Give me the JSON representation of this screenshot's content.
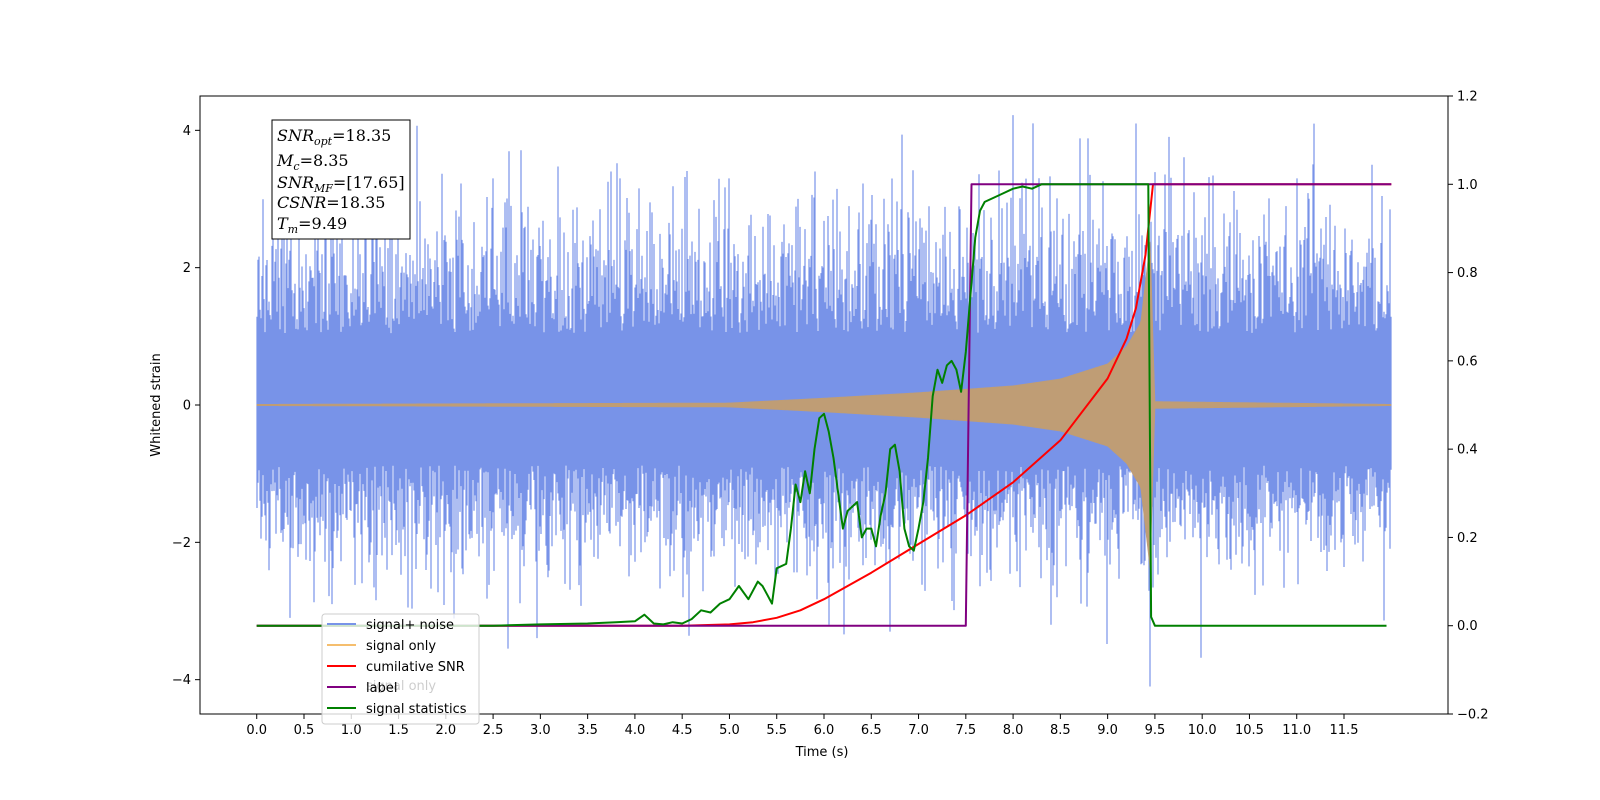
{
  "chart_data": {
    "type": "line",
    "title": "",
    "xlabel": "Time (s)",
    "ylabel": "Whitened strain",
    "xlim": [
      -0.6,
      12.6
    ],
    "ylim": [
      -4.5,
      4.5
    ],
    "y2lim": [
      -0.2,
      1.2
    ],
    "x_ticks": [
      0,
      0.5,
      1,
      1.5,
      2,
      2.5,
      3,
      3.5,
      4,
      4.5,
      5,
      5.5,
      6,
      6.5,
      7,
      7.5,
      8,
      8.5,
      9,
      9.5,
      10,
      10.5,
      11,
      11.5
    ],
    "x_tick_labels": [
      "0.0",
      "0.5",
      "1.0",
      "1.5",
      "2.0",
      "2.5",
      "3.0",
      "3.5",
      "4.0",
      "4.5",
      "5.0",
      "5.5",
      "6.0",
      "6.5",
      "7.0",
      "7.5",
      "8.0",
      "8.5",
      "9.0",
      "9.5",
      "10.0",
      "10.5",
      "11.0",
      "11.5"
    ],
    "y_ticks": [
      -4,
      -2,
      0,
      2,
      4
    ],
    "y_tick_labels": [
      "−4",
      "−2",
      "0",
      "2",
      "4"
    ],
    "y2_ticks": [
      -0.2,
      0.0,
      0.2,
      0.4,
      0.6,
      0.8,
      1.0,
      1.2
    ],
    "y2_tick_labels": [
      "−0.2",
      "0.0",
      "0.2",
      "0.4",
      "0.6",
      "0.8",
      "1.0",
      "1.2"
    ],
    "grid": false,
    "legend_position": "lower-left",
    "series": [
      {
        "name": "signal+ noise",
        "axis": "left",
        "color": "#7893e8",
        "x_range": [
          0,
          12
        ],
        "envelope_upper": 1.9,
        "envelope_lower": -1.6,
        "spikes": [
          {
            "x": 0.35,
            "y": -3.1
          },
          {
            "x": 0.8,
            "y": -2.9
          },
          {
            "x": 2.5,
            "y": 3.3
          },
          {
            "x": 3.75,
            "y": 3.4
          },
          {
            "x": 5.0,
            "y": 3.3
          },
          {
            "x": 5.9,
            "y": 3.4
          },
          {
            "x": 6.05,
            "y": -3.2
          },
          {
            "x": 6.7,
            "y": -3.3
          },
          {
            "x": 8.4,
            "y": -3.2
          },
          {
            "x": 9.3,
            "y": 4.1
          },
          {
            "x": 9.45,
            "y": -4.1
          },
          {
            "x": 11.0,
            "y": 3.3
          },
          {
            "x": 11.8,
            "y": 3.5
          }
        ]
      },
      {
        "name": "signal only",
        "axis": "left",
        "color": "#f5be6e",
        "x_range": [
          0,
          12
        ],
        "amplitude_points": [
          {
            "x": 0,
            "y": 0.01
          },
          {
            "x": 5.0,
            "y": 0.03
          },
          {
            "x": 6.0,
            "y": 0.1
          },
          {
            "x": 7.0,
            "y": 0.18
          },
          {
            "x": 8.0,
            "y": 0.28
          },
          {
            "x": 8.5,
            "y": 0.38
          },
          {
            "x": 9.0,
            "y": 0.6
          },
          {
            "x": 9.2,
            "y": 0.85
          },
          {
            "x": 9.35,
            "y": 1.2
          },
          {
            "x": 9.45,
            "y": 2.4
          },
          {
            "x": 9.5,
            "y": 0.05
          },
          {
            "x": 12.0,
            "y": 0.01
          }
        ]
      },
      {
        "name": "cumilative SNR",
        "axis": "right",
        "color": "#ff0000",
        "x": [
          0,
          4.5,
          5.0,
          5.25,
          5.5,
          5.75,
          6.0,
          6.5,
          7.0,
          7.5,
          8.0,
          8.5,
          9.0,
          9.2,
          9.3,
          9.4,
          9.48,
          12.0
        ],
        "y": [
          0,
          0,
          0.003,
          0.008,
          0.018,
          0.035,
          0.06,
          0.12,
          0.185,
          0.25,
          0.325,
          0.42,
          0.56,
          0.65,
          0.72,
          0.84,
          1.0,
          1.0
        ]
      },
      {
        "name": "label",
        "axis": "right",
        "color": "#800080",
        "x": [
          0,
          7.5,
          7.56,
          9.45,
          9.48,
          12.0
        ],
        "y": [
          0,
          0,
          1.0,
          1.0,
          1.0,
          1.0
        ]
      },
      {
        "name": "signal statistics",
        "axis": "right",
        "color": "#008000",
        "x": [
          0,
          2.5,
          3.0,
          3.5,
          3.8,
          4.0,
          4.1,
          4.2,
          4.3,
          4.4,
          4.5,
          4.6,
          4.7,
          4.8,
          4.9,
          5.0,
          5.1,
          5.2,
          5.3,
          5.35,
          5.4,
          5.45,
          5.5,
          5.6,
          5.65,
          5.7,
          5.75,
          5.8,
          5.85,
          5.9,
          5.95,
          6.0,
          6.05,
          6.1,
          6.2,
          6.25,
          6.3,
          6.35,
          6.4,
          6.45,
          6.5,
          6.55,
          6.6,
          6.65,
          6.7,
          6.75,
          6.8,
          6.85,
          6.9,
          6.95,
          7.0,
          7.05,
          7.1,
          7.15,
          7.2,
          7.25,
          7.3,
          7.35,
          7.4,
          7.45,
          7.5,
          7.55,
          7.6,
          7.65,
          7.7,
          7.8,
          7.9,
          8.0,
          8.1,
          8.2,
          8.3,
          8.5,
          9.0,
          9.43,
          9.46,
          9.5,
          11.95
        ],
        "y": [
          0,
          0,
          0.003,
          0.005,
          0.008,
          0.01,
          0.025,
          0.005,
          0.003,
          0.008,
          0.005,
          0.015,
          0.035,
          0.03,
          0.05,
          0.06,
          0.09,
          0.06,
          0.1,
          0.09,
          0.07,
          0.05,
          0.13,
          0.14,
          0.22,
          0.32,
          0.28,
          0.35,
          0.3,
          0.4,
          0.47,
          0.48,
          0.44,
          0.38,
          0.22,
          0.26,
          0.27,
          0.28,
          0.2,
          0.22,
          0.22,
          0.18,
          0.25,
          0.3,
          0.4,
          0.41,
          0.35,
          0.22,
          0.18,
          0.17,
          0.22,
          0.28,
          0.38,
          0.52,
          0.58,
          0.55,
          0.59,
          0.6,
          0.58,
          0.53,
          0.62,
          0.75,
          0.88,
          0.94,
          0.96,
          0.97,
          0.98,
          0.99,
          0.995,
          0.99,
          1.0,
          1.0,
          1.0,
          1.0,
          0.02,
          0.0,
          0.0
        ]
      }
    ],
    "legend_entries": [
      {
        "name": "signal+ noise",
        "color": "#7893e8"
      },
      {
        "name": "signal only",
        "color": "#f5be6e"
      },
      {
        "name": "cumilative SNR",
        "color": "#ff0000"
      },
      {
        "name": "label",
        "color": "#800080"
      },
      {
        "name": "signal statistics",
        "color": "#008000"
      }
    ],
    "info_box": {
      "snr_opt": {
        "base": "SNR",
        "sub": "opt",
        "value": "=18.35"
      },
      "mc": {
        "base": "M",
        "sub": "c",
        "value": "=8.35"
      },
      "snr_mf": {
        "base": "SNR",
        "sub": "MF",
        "value": "=[17.65]"
      },
      "csnr": {
        "base": "CSNR",
        "sub": "",
        "value": "=18.35"
      },
      "tm": {
        "base": "T",
        "sub": "m",
        "value": "=9.49"
      }
    },
    "legend_ghost_text": "signal only"
  }
}
